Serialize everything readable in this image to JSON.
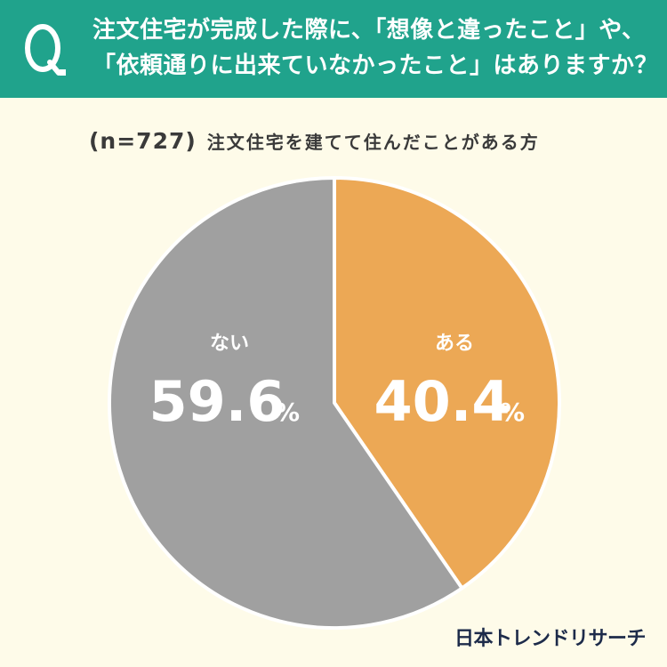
{
  "header": {
    "q_letter": "Q",
    "question_lines": [
      "注文住宅が完成した際に、「想像と違ったこと」や、",
      "「依頼通りに出来ていなかったこと」はありますか？"
    ]
  },
  "subtitle": {
    "sample_size": "(n=727)",
    "audience": "注文住宅を建てて住んだことがある方"
  },
  "brand": "日本トレンドリサーチ",
  "colors": {
    "banner": "#20a38c",
    "background": "#fefbe9",
    "aru": "#eca855",
    "nai": "#a0a0a0"
  },
  "chart_data": {
    "type": "pie",
    "title": "",
    "categories": [
      "ある",
      "ない"
    ],
    "values": [
      40.4,
      59.6
    ],
    "value_labels": [
      "40.4",
      "59.6"
    ],
    "unit": "%",
    "start": "12 o'clock",
    "direction": "clockwise"
  }
}
